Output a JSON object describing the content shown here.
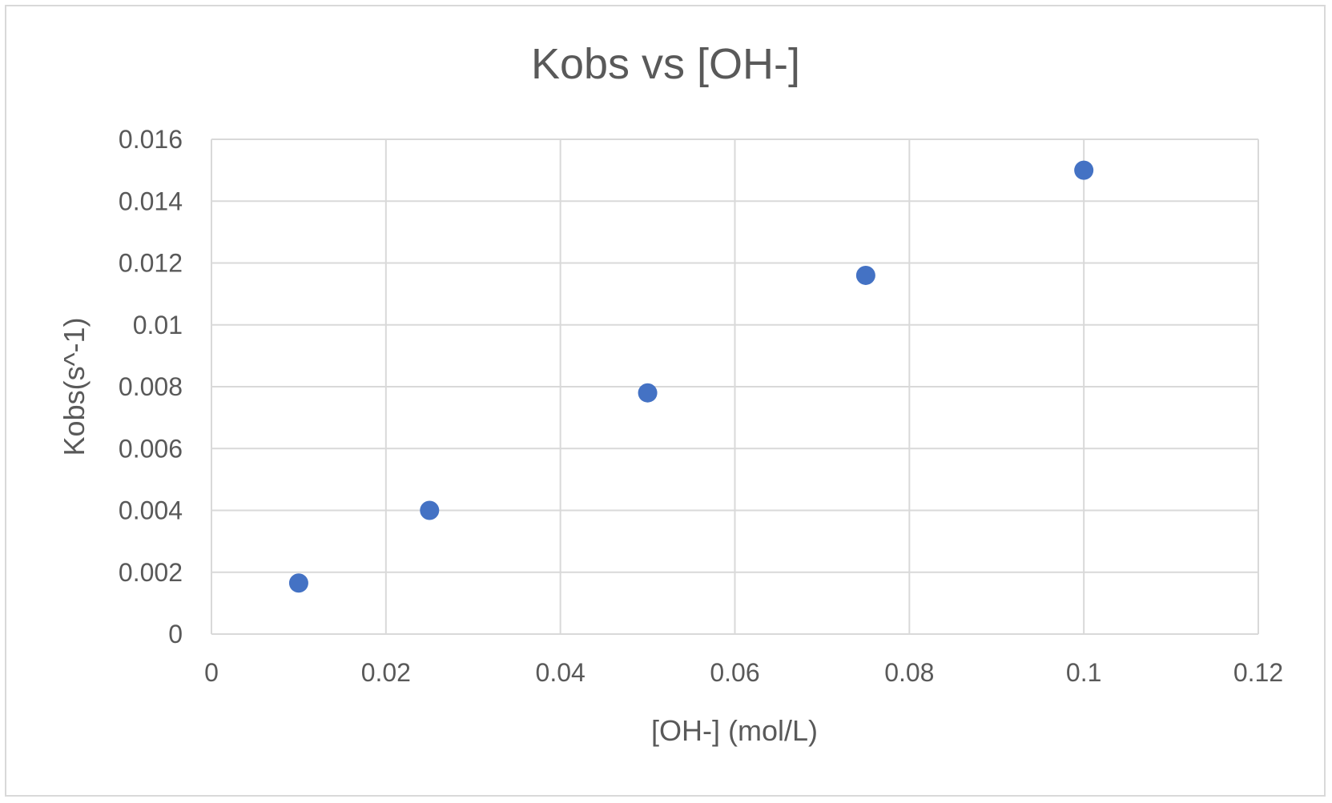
{
  "chart_data": {
    "type": "scatter",
    "title": "Kobs vs [OH-]",
    "xlabel": "[OH-] (mol/L)",
    "ylabel": "Kobs(s^-1)",
    "xlim": [
      0,
      0.12
    ],
    "ylim": [
      0,
      0.016
    ],
    "x_ticks": [
      "0",
      "0.02",
      "0.04",
      "0.06",
      "0.08",
      "0.1",
      "0.12"
    ],
    "y_ticks": [
      "0",
      "0.002",
      "0.004",
      "0.006",
      "0.008",
      "0.01",
      "0.012",
      "0.014",
      "0.016"
    ],
    "grid": true,
    "legend": "none",
    "series": [
      {
        "color": "#4472c4",
        "x": [
          0.01,
          0.025,
          0.05,
          0.075,
          0.1
        ],
        "y": [
          0.00165,
          0.004,
          0.0078,
          0.0116,
          0.015
        ]
      }
    ]
  }
}
